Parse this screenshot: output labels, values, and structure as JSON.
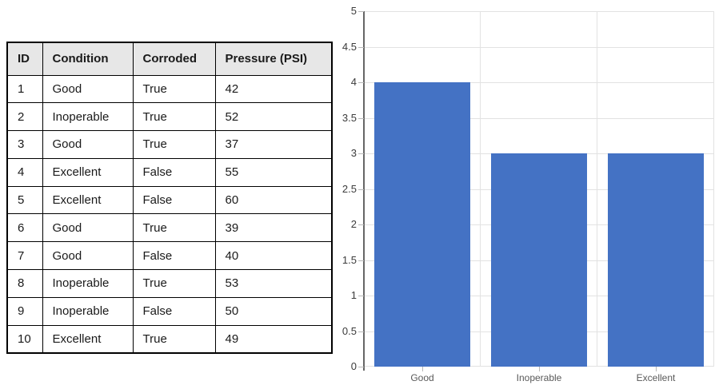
{
  "table": {
    "headers": [
      "ID",
      "Condition",
      "Corroded",
      "Pressure (PSI)"
    ],
    "rows": [
      [
        "1",
        "Good",
        "True",
        "42"
      ],
      [
        "2",
        "Inoperable",
        "True",
        "52"
      ],
      [
        "3",
        "Good",
        "True",
        "37"
      ],
      [
        "4",
        "Excellent",
        "False",
        "55"
      ],
      [
        "5",
        "Excellent",
        "False",
        "60"
      ],
      [
        "6",
        "Good",
        "True",
        "39"
      ],
      [
        "7",
        "Good",
        "False",
        "40"
      ],
      [
        "8",
        "Inoperable",
        "True",
        "53"
      ],
      [
        "9",
        "Inoperable",
        "False",
        "50"
      ],
      [
        "10",
        "Excellent",
        "True",
        "49"
      ]
    ],
    "header_bg": "#E7E7E7",
    "border_color": "#000000"
  },
  "chart_data": {
    "type": "bar",
    "title": "",
    "xlabel": "",
    "ylabel": "",
    "categories": [
      "Good",
      "Inoperable",
      "Excellent"
    ],
    "values": [
      4,
      3,
      3
    ],
    "ylim": [
      0,
      5
    ],
    "ytick_step": 0.5,
    "ytick_labels": [
      "0",
      "0.5",
      "1",
      "1.5",
      "2",
      "2.5",
      "3",
      "3.5",
      "4",
      "4.5",
      "5"
    ],
    "grid": "horizontal every 0.5 unit; vertical at category boundaries and right edge",
    "legend_position": "none",
    "colors": {
      "bar": "#4472C4",
      "gridline": "#E2E2E2",
      "axis": "#666666",
      "tick": "#B8B8B8",
      "ytick_label": "#3B3B3B",
      "category_label": "#595959"
    }
  }
}
